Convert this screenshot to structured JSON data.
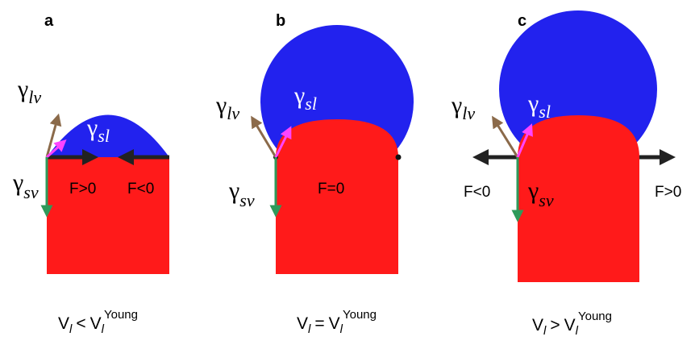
{
  "panels": [
    {
      "label": "a",
      "gamma_lv": {
        "symbol": "γ",
        "sub": "lv"
      },
      "gamma_sl": {
        "symbol": "γ",
        "sub": "sl"
      },
      "gamma_sv": {
        "symbol": "γ",
        "sub": "sv"
      },
      "forces": [
        "F>0",
        "F<0"
      ],
      "caption": {
        "lhs": "V",
        "lhs_sub": "l",
        "relation": "<",
        "rhs": "V",
        "rhs_sub": "l",
        "rhs_sup": "Young"
      }
    },
    {
      "label": "b",
      "gamma_lv": {
        "symbol": "γ",
        "sub": "lv"
      },
      "gamma_sl": {
        "symbol": "γ",
        "sub": "sl"
      },
      "gamma_sv": {
        "symbol": "γ",
        "sub": "sv"
      },
      "forces": [
        "F=0"
      ],
      "caption": {
        "lhs": "V",
        "lhs_sub": "l",
        "relation": "=",
        "rhs": "V",
        "rhs_sub": "l",
        "rhs_sup": "Young"
      }
    },
    {
      "label": "c",
      "gamma_lv": {
        "symbol": "γ",
        "sub": "lv"
      },
      "gamma_sl": {
        "symbol": "γ",
        "sub": "sl"
      },
      "gamma_sv": {
        "symbol": "γ",
        "sub": "sv"
      },
      "forces": [
        "F<0",
        "F>0"
      ],
      "caption": {
        "lhs": "V",
        "lhs_sub": "l",
        "relation": ">",
        "rhs": "V",
        "rhs_sub": "l",
        "rhs_sup": "Young"
      }
    }
  ]
}
